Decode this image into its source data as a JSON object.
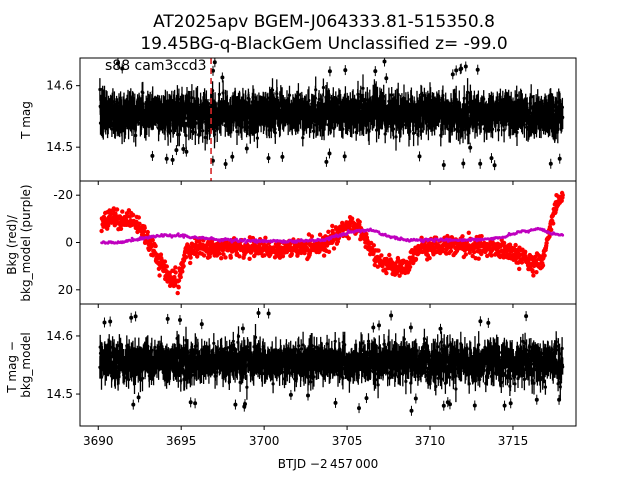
{
  "chart_data": {
    "type": "scatter",
    "title_line1": "AT2025apv  BGEM-J064333.81-515350.8",
    "title_line2": "19.45BG-q-BlackGem Unclassified z= -99.0",
    "xlabel": "BTJD −2 457 000",
    "xlim": [
      3688.9,
      3718.8
    ],
    "xticks": [
      3690,
      3695,
      3700,
      3705,
      3710,
      3715
    ],
    "grid": false,
    "panels": [
      {
        "name": "T mag",
        "ylabel": "T mag",
        "ylim": [
          14.645,
          14.445
        ],
        "inverted": true,
        "yticks": [
          14.5,
          14.6
        ],
        "annotation": "s88 cam3ccd3",
        "event_line": {
          "x": 3696.8,
          "color": "#d62728",
          "style": "dashed"
        },
        "series": [
          {
            "color": "#000000",
            "x_range": [
              3690.1,
              3718.0
            ],
            "level": 14.555,
            "scatter": 0.02,
            "error": 0.018,
            "n_points": 1500
          }
        ]
      },
      {
        "name": "Bkg",
        "ylabel": "Bkg (red)/ bkg_model (purple)",
        "ylim": [
          -26,
          26
        ],
        "yticks": [
          -20,
          0,
          20
        ],
        "series": [
          {
            "color": "#ff0000",
            "x": [
              3690.2,
              3691.0,
              3692.0,
              3692.8,
              3693.2,
              3693.8,
              3694.3,
              3694.8,
              3695.3,
              3696.0,
              3697.0,
              3699.0,
              3701.0,
              3703.0,
              3703.8,
              3704.5,
              3705.2,
              3705.8,
              3706.3,
              3706.8,
              3707.3,
              3708.0,
              3708.7,
              3709.3,
              3710.0,
              3711.0,
              3713.0,
              3714.5,
              3715.5,
              3716.3,
              3716.8,
              3717.2,
              3717.6,
              3718.0
            ],
            "y": [
              -8,
              -10,
              -9,
              -4,
              2,
              9,
              16,
              17,
              4,
              3,
              2,
              2,
              3,
              2,
              0,
              -3,
              -8,
              -6,
              1,
              6,
              10,
              11,
              9,
              3,
              2,
              1,
              2,
              3,
              6,
              10,
              7,
              -5,
              -16,
              -19
            ],
            "scatter": 3.2
          },
          {
            "color": "#bf00bf",
            "x": [
              3690.2,
              3691.0,
              3692.0,
              3693.0,
              3694.0,
              3694.8,
              3696.0,
              3698.0,
              3700.0,
              3702.0,
              3703.5,
              3704.5,
              3705.5,
              3706.5,
              3707.3,
              3708.5,
              3710.0,
              3712.0,
              3713.5,
              3714.5,
              3715.5,
              3716.5,
              3717.3,
              3718.0
            ],
            "y": [
              0,
              0,
              -1,
              -2,
              -3,
              -3,
              -2,
              -1,
              -0.5,
              -0.5,
              -1,
              -3,
              -5,
              -5,
              -3,
              -1,
              -1,
              -1,
              -1.5,
              -2.5,
              -4.5,
              -6,
              -4,
              -3
            ]
          }
        ]
      },
      {
        "name": "T mag - bkg_model",
        "ylabel": "T mag − bkg_model",
        "ylim": [
          14.655,
          14.445
        ],
        "inverted": true,
        "yticks": [
          14.5,
          14.6
        ],
        "series": [
          {
            "color": "#000000",
            "x_range": [
              3690.1,
              3718.0
            ],
            "level": 14.555,
            "scatter": 0.02,
            "error": 0.018,
            "n_points": 1500
          }
        ]
      }
    ]
  }
}
